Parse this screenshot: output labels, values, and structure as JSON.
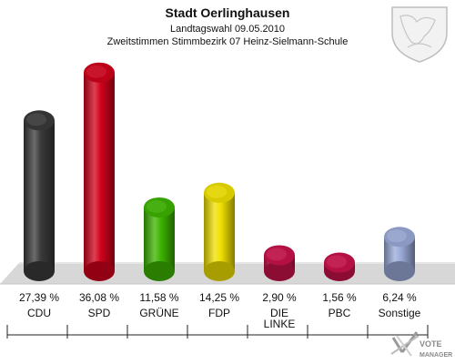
{
  "header": {
    "title": "Stadt Oerlinghausen",
    "subtitle1": "Landtagswahl 09.05.2010",
    "subtitle2": "Zweitstimmen Stimmbezirk 07 Heinz-Sielmann-Schule"
  },
  "logo_text": "VOTE MANAGER",
  "chart_data": {
    "type": "bar",
    "title": "Stadt Oerlinghausen",
    "categories": [
      "CDU",
      "SPD",
      "GRÜNE",
      "FDP",
      "DIE LINKE",
      "PBC",
      "Sonstige"
    ],
    "values": [
      27.39,
      36.08,
      11.58,
      14.25,
      2.9,
      1.56,
      6.24
    ],
    "value_labels": [
      "27,39 %",
      "36,08 %",
      "11,58 %",
      "14,25 %",
      "2,90 %",
      "1,56 %",
      "6,24 %"
    ],
    "colors": [
      "#3a3a3a",
      "#d0021b",
      "#3cb300",
      "#f0e000",
      "#c8124a",
      "#c8124a",
      "#9aaad8"
    ],
    "ylim": [
      0,
      40
    ],
    "grid": false,
    "legend": "none"
  }
}
